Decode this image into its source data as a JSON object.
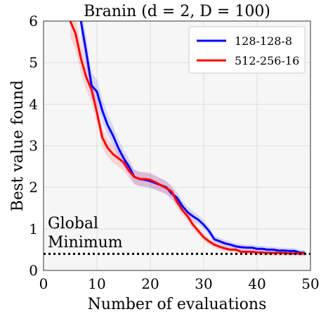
{
  "chart_data": {
    "type": "line",
    "title": "Branin (d = 2, D = 100)",
    "xlabel": "Number of evaluations",
    "ylabel": "Best value found",
    "xlim": [
      0,
      50
    ],
    "ylim": [
      0,
      6
    ],
    "xticks": [
      0,
      10,
      20,
      30,
      40,
      50
    ],
    "yticks": [
      0,
      1,
      2,
      3,
      4,
      5,
      6
    ],
    "grid": true,
    "legend_position": "top-right",
    "series": [
      {
        "name": "128-128-8",
        "color": "#0000ff",
        "x": [
          7,
          8,
          9,
          10,
          11,
          12,
          13,
          14,
          15,
          16,
          17,
          18,
          19,
          20,
          21,
          22,
          23,
          24,
          25,
          26,
          27,
          28,
          29,
          30,
          31,
          32,
          33,
          34,
          35,
          36,
          37,
          38,
          39,
          40,
          41,
          42,
          43,
          44,
          45,
          46,
          47,
          48,
          49
        ],
        "y": [
          6.0,
          5.25,
          4.45,
          4.3,
          3.85,
          3.5,
          3.25,
          2.95,
          2.7,
          2.5,
          2.25,
          2.2,
          2.18,
          2.15,
          2.1,
          2.05,
          2.0,
          1.85,
          1.75,
          1.55,
          1.4,
          1.3,
          1.22,
          1.1,
          0.95,
          0.75,
          0.7,
          0.65,
          0.62,
          0.58,
          0.56,
          0.55,
          0.55,
          0.52,
          0.52,
          0.5,
          0.5,
          0.48,
          0.48,
          0.47,
          0.47,
          0.43,
          0.42
        ]
      },
      {
        "name": "512-256-16",
        "color": "#ff0000",
        "x": [
          5,
          6,
          7,
          8,
          9,
          10,
          11,
          12,
          13,
          14,
          15,
          16,
          17,
          18,
          19,
          20,
          21,
          22,
          23,
          24,
          25,
          26,
          27,
          28,
          29,
          30,
          31,
          32,
          33,
          34,
          35,
          36,
          37,
          38,
          39,
          40,
          41,
          42,
          43,
          44,
          45,
          46,
          47,
          48,
          49
        ],
        "y": [
          6.0,
          5.7,
          5.1,
          4.65,
          4.35,
          3.8,
          3.2,
          2.95,
          2.8,
          2.7,
          2.6,
          2.4,
          2.25,
          2.2,
          2.2,
          2.18,
          2.12,
          2.05,
          1.98,
          1.9,
          1.65,
          1.45,
          1.3,
          1.1,
          0.95,
          0.8,
          0.7,
          0.62,
          0.57,
          0.53,
          0.5,
          0.5,
          0.45,
          0.45,
          0.45,
          0.43,
          0.43,
          0.42,
          0.42,
          0.42,
          0.42,
          0.41,
          0.41,
          0.41,
          0.41
        ]
      }
    ],
    "reference_line": {
      "label_line1": "Global",
      "label_line2": "Minimum",
      "y": 0.4,
      "style": "dotted",
      "color": "#000000"
    }
  }
}
